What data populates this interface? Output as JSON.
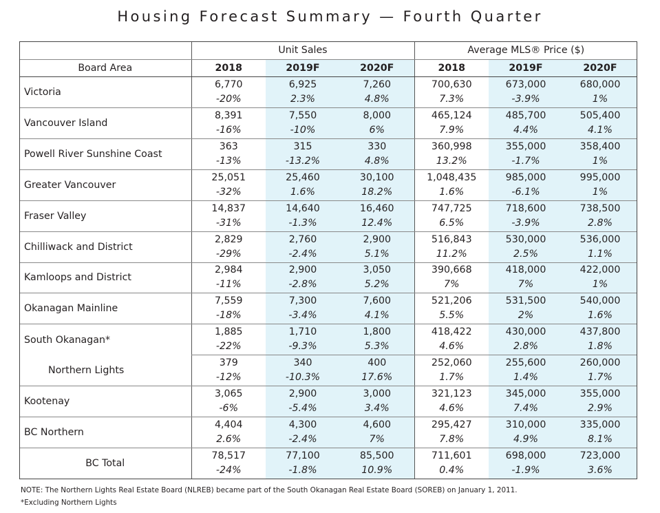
{
  "title": "Housing Forecast Summary — Fourth Quarter",
  "header": {
    "group_unit": "Unit Sales",
    "group_price": "Average MLS® Price ($)",
    "board_area": "Board Area",
    "years": [
      "2018",
      "2019F",
      "2020F",
      "2018",
      "2019F",
      "2020F"
    ]
  },
  "rows": [
    {
      "name": "Victoria",
      "vals": [
        "6,770",
        "6,925",
        "7,260",
        "700,630",
        "673,000",
        "680,000"
      ],
      "pcts": [
        "-20%",
        "2.3%",
        "4.8%",
        "7.3%",
        "-3.9%",
        "1%"
      ]
    },
    {
      "name": "Vancouver Island",
      "vals": [
        "8,391",
        "7,550",
        "8,000",
        "465,124",
        "485,700",
        "505,400"
      ],
      "pcts": [
        "-16%",
        "-10%",
        "6%",
        "7.9%",
        "4.4%",
        "4.1%"
      ]
    },
    {
      "name": "Powell River Sunshine Coast",
      "vals": [
        "363",
        "315",
        "330",
        "360,998",
        "355,000",
        "358,400"
      ],
      "pcts": [
        "-13%",
        "-13.2%",
        "4.8%",
        "13.2%",
        "-1.7%",
        "1%"
      ]
    },
    {
      "name": "Greater Vancouver",
      "vals": [
        "25,051",
        "25,460",
        "30,100",
        "1,048,435",
        "985,000",
        "995,000"
      ],
      "pcts": [
        "-32%",
        "1.6%",
        "18.2%",
        "1.6%",
        "-6.1%",
        "1%"
      ]
    },
    {
      "name": "Fraser Valley",
      "vals": [
        "14,837",
        "14,640",
        "16,460",
        "747,725",
        "718,600",
        "738,500"
      ],
      "pcts": [
        "-31%",
        "-1.3%",
        "12.4%",
        "6.5%",
        "-3.9%",
        "2.8%"
      ]
    },
    {
      "name": "Chilliwack and District",
      "vals": [
        "2,829",
        "2,760",
        "2,900",
        "516,843",
        "530,000",
        "536,000"
      ],
      "pcts": [
        "-29%",
        "-2.4%",
        "5.1%",
        "11.2%",
        "2.5%",
        "1.1%"
      ]
    },
    {
      "name": "Kamloops and District",
      "vals": [
        "2,984",
        "2,900",
        "3,050",
        "390,668",
        "418,000",
        "422,000"
      ],
      "pcts": [
        "-11%",
        "-2.8%",
        "5.2%",
        "7%",
        "7%",
        "1%"
      ]
    },
    {
      "name": "Okanagan Mainline",
      "vals": [
        "7,559",
        "7,300",
        "7,600",
        "521,206",
        "531,500",
        "540,000"
      ],
      "pcts": [
        "-18%",
        "-3.4%",
        "4.1%",
        "5.5%",
        "2%",
        "1.6%"
      ]
    },
    {
      "name": "South Okanagan*",
      "vals": [
        "1,885",
        "1,710",
        "1,800",
        "418,422",
        "430,000",
        "437,800"
      ],
      "pcts": [
        "-22%",
        "-9.3%",
        "5.3%",
        "4.6%",
        "2.8%",
        "1.8%"
      ]
    },
    {
      "name": "Northern Lights",
      "vals": [
        "379",
        "340",
        "400",
        "252,060",
        "255,600",
        "260,000"
      ],
      "pcts": [
        "-12%",
        "-10.3%",
        "17.6%",
        "1.7%",
        "1.4%",
        "1.7%"
      ]
    },
    {
      "name": "Kootenay",
      "vals": [
        "3,065",
        "2,900",
        "3,000",
        "321,123",
        "345,000",
        "355,000"
      ],
      "pcts": [
        "-6%",
        "-5.4%",
        "3.4%",
        "4.6%",
        "7.4%",
        "2.9%"
      ]
    },
    {
      "name": "BC Northern",
      "vals": [
        "4,404",
        "4,300",
        "4,600",
        "295,427",
        "310,000",
        "335,000"
      ],
      "pcts": [
        "2.6%",
        "-2.4%",
        "7%",
        "7.8%",
        "4.9%",
        "8.1%"
      ]
    },
    {
      "name": "BC Total",
      "vals": [
        "78,517",
        "77,100",
        "85,500",
        "711,601",
        "698,000",
        "723,000"
      ],
      "pcts": [
        "-24%",
        "-1.8%",
        "10.9%",
        "0.4%",
        "-1.9%",
        "3.6%"
      ]
    }
  ],
  "notes": {
    "note": "NOTE: The Northern Lights Real Estate Board (NLREB) became part of the South Okanagan Real Estate Board (SOREB) on January 1, 2011.",
    "footnote": "*Excluding Northern Lights"
  },
  "colors": {
    "shade": "#e1f3f9",
    "text": "#231f20"
  }
}
